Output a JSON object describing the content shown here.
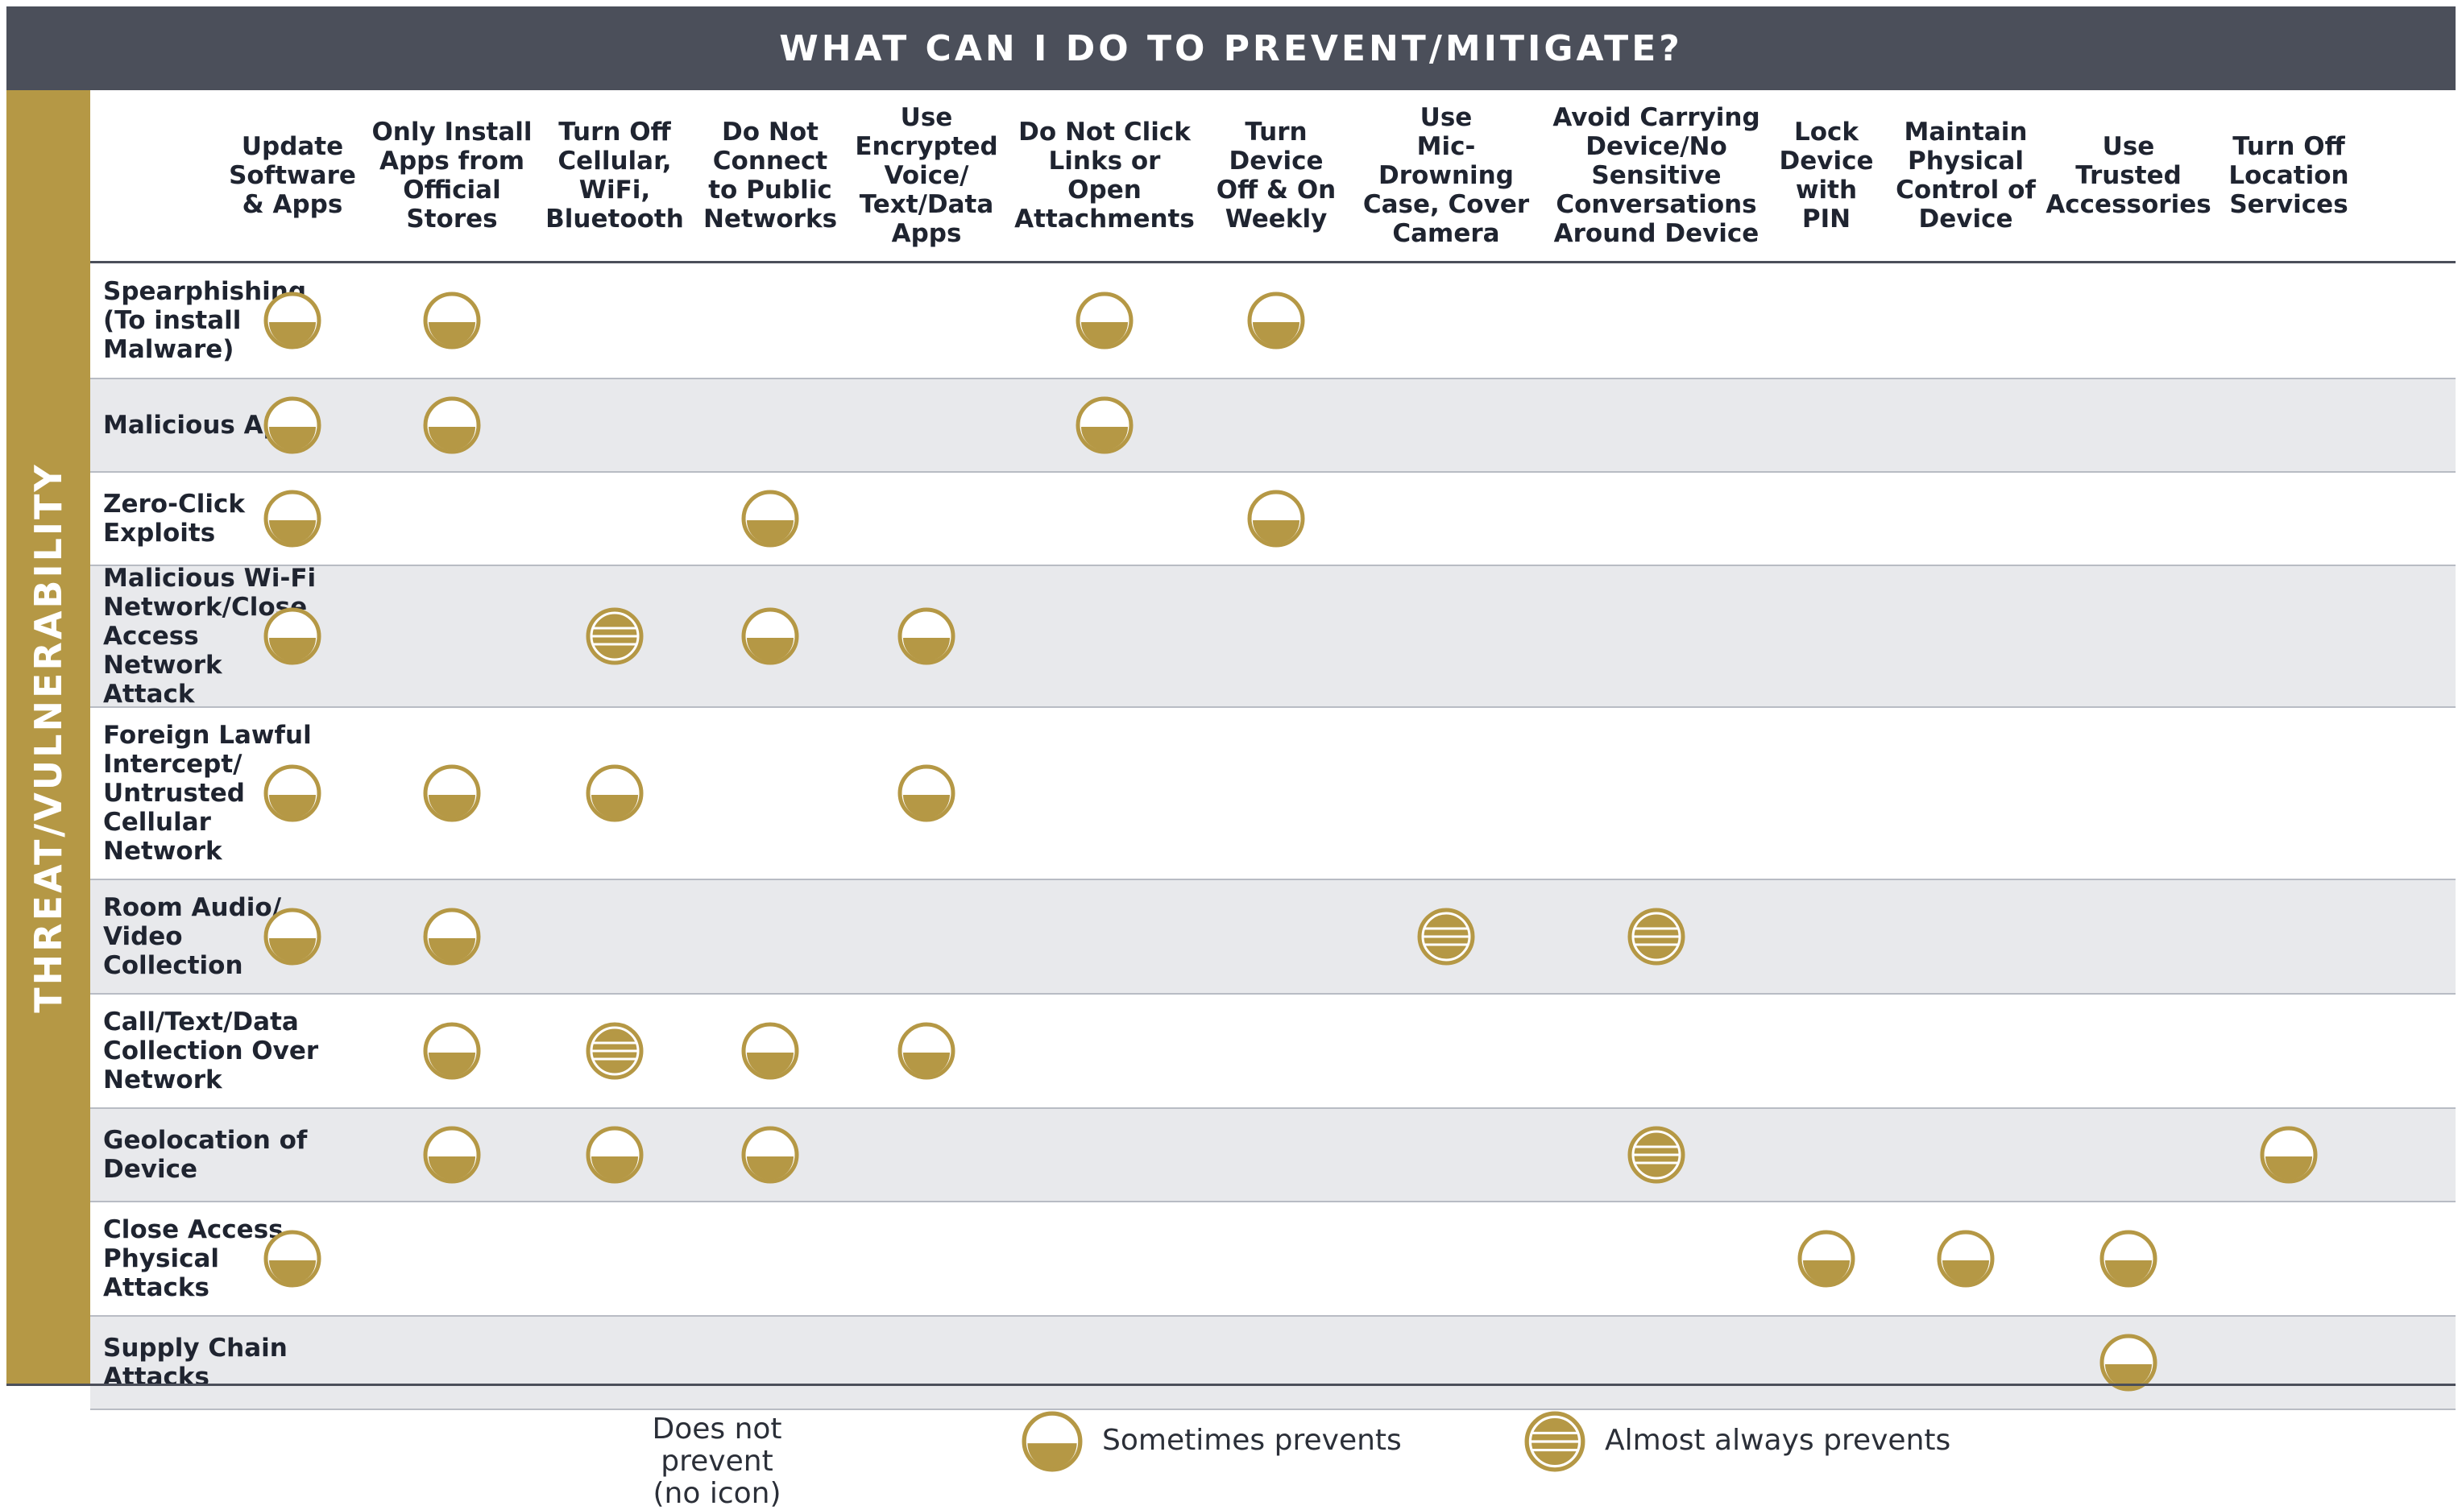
{
  "header": {
    "title": "WHAT CAN I DO TO PREVENT/MITIGATE?"
  },
  "side_label": "THREAT/VULNERABILITY",
  "colors": {
    "header_bg": "#4b4f5a",
    "gold": "#b59845",
    "row_shade": "#e8e9ec",
    "text": "#1f2430"
  },
  "columns": [
    {
      "id": "update",
      "label": "Update\nSoftware\n& Apps"
    },
    {
      "id": "official",
      "label": "Only Install\nApps from\nOfficial\nStores"
    },
    {
      "id": "turnoff",
      "label": "Turn Off\nCellular,\nWiFi,\nBluetooth"
    },
    {
      "id": "public",
      "label": "Do Not\nConnect\nto Public\nNetworks"
    },
    {
      "id": "encrypted",
      "label": "Use\nEncrypted\nVoice/\nText/Data\nApps"
    },
    {
      "id": "links",
      "label": "Do Not Click\nLinks or Open\nAttachments"
    },
    {
      "id": "weekly",
      "label": "Turn\nDevice\nOff & On\nWeekly"
    },
    {
      "id": "mic",
      "label": "Use\nMic-Drowning\nCase, Cover\nCamera"
    },
    {
      "id": "avoid",
      "label": "Avoid Carrying\nDevice/No\nSensitive\nConversations\nAround Device"
    },
    {
      "id": "pin",
      "label": "Lock\nDevice\nwith\nPIN"
    },
    {
      "id": "physical",
      "label": "Maintain\nPhysical\nControl of\nDevice"
    },
    {
      "id": "trusted",
      "label": "Use\nTrusted\nAccessories"
    },
    {
      "id": "location",
      "label": "Turn Off\nLocation\nServices"
    }
  ],
  "rows": [
    {
      "label": "Spearphishing\n(To install\nMalware)",
      "cells": [
        "sometimes",
        "sometimes",
        "",
        "",
        "",
        "sometimes",
        "sometimes",
        "",
        "",
        "",
        "",
        "",
        ""
      ]
    },
    {
      "label": "Malicious Apps",
      "cells": [
        "sometimes",
        "sometimes",
        "",
        "",
        "",
        "sometimes",
        "",
        "",
        "",
        "",
        "",
        "",
        ""
      ]
    },
    {
      "label": "Zero-Click\nExploits",
      "cells": [
        "sometimes",
        "",
        "",
        "sometimes",
        "",
        "",
        "sometimes",
        "",
        "",
        "",
        "",
        "",
        ""
      ]
    },
    {
      "label": "Malicious Wi-Fi\nNetwork/Close\nAccess Network\nAttack",
      "cells": [
        "sometimes",
        "",
        "almost",
        "sometimes",
        "sometimes",
        "",
        "",
        "",
        "",
        "",
        "",
        "",
        ""
      ]
    },
    {
      "label": "Foreign Lawful\nIntercept/\nUntrusted\nCellular\nNetwork",
      "cells": [
        "sometimes",
        "sometimes",
        "sometimes",
        "",
        "sometimes",
        "",
        "",
        "",
        "",
        "",
        "",
        "",
        ""
      ]
    },
    {
      "label": "Room Audio/\nVideo\nCollection",
      "cells": [
        "sometimes",
        "sometimes",
        "",
        "",
        "",
        "",
        "",
        "almost",
        "almost",
        "",
        "",
        "",
        ""
      ]
    },
    {
      "label": "Call/Text/Data\nCollection Over\nNetwork",
      "cells": [
        "",
        "sometimes",
        "almost",
        "sometimes",
        "sometimes",
        "",
        "",
        "",
        "",
        "",
        "",
        "",
        ""
      ]
    },
    {
      "label": "Geolocation of\nDevice",
      "cells": [
        "",
        "sometimes",
        "sometimes",
        "sometimes",
        "",
        "",
        "",
        "",
        "almost",
        "",
        "",
        "",
        "sometimes"
      ]
    },
    {
      "label": "Close Access\nPhysical\nAttacks",
      "cells": [
        "sometimes",
        "",
        "",
        "",
        "",
        "",
        "",
        "",
        "",
        "sometimes",
        "sometimes",
        "sometimes",
        ""
      ]
    },
    {
      "label": "Supply Chain\nAttacks",
      "cells": [
        "",
        "",
        "",
        "",
        "",
        "",
        "",
        "",
        "",
        "",
        "",
        "sometimes",
        ""
      ]
    }
  ],
  "legend": {
    "none": "Does not prevent\n(no icon)",
    "sometimes": "Sometimes prevents",
    "almost": "Almost always prevents"
  }
}
